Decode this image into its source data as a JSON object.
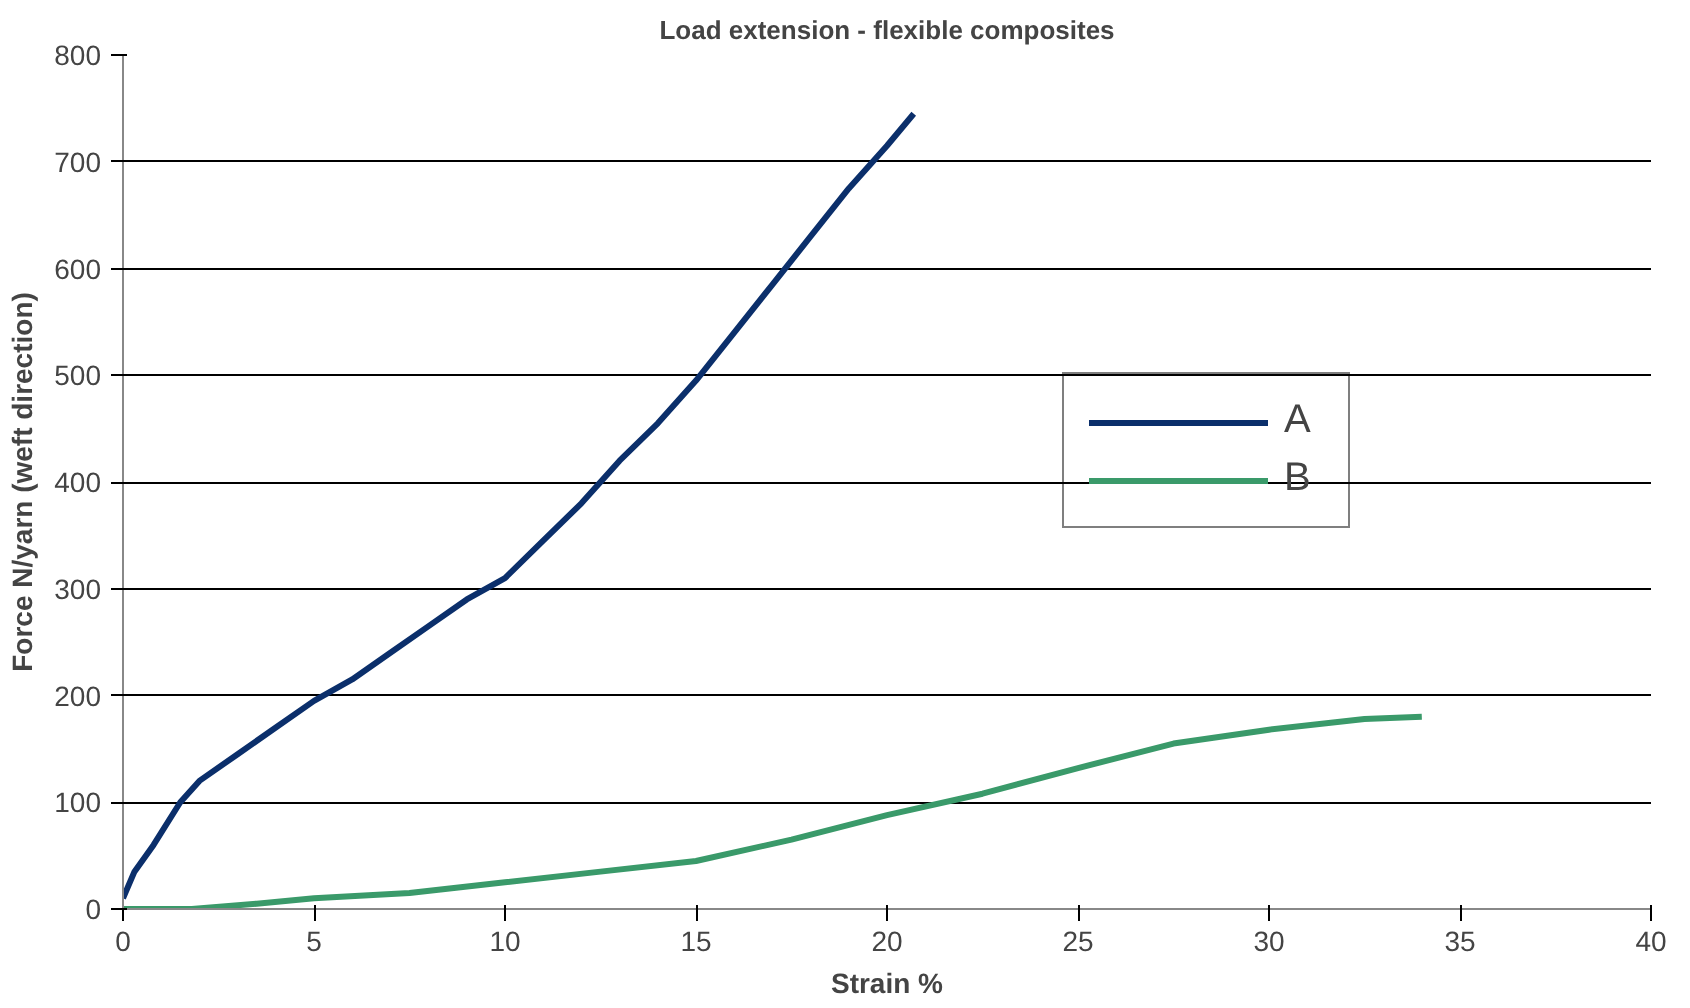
{
  "chart_data": {
    "type": "line",
    "title": "Load extension - flexible composites",
    "xlabel": "Strain %",
    "ylabel": "Force N/yarn (weft direction)",
    "xlim": [
      0,
      40
    ],
    "xticks": [
      0,
      5,
      10,
      15,
      20,
      25,
      30,
      35,
      40
    ],
    "ylim": [
      0,
      800
    ],
    "yticks": [
      0,
      100,
      200,
      300,
      400,
      500,
      600,
      700,
      800
    ],
    "grid": "y",
    "legend": "right",
    "marker": "none",
    "line_style": "solid",
    "series": [
      {
        "name": "A",
        "color": "#0b2f6b",
        "x": [
          0,
          0.3,
          0.8,
          1.5,
          2,
          3,
          4,
          5,
          6,
          7,
          8,
          9,
          10,
          11,
          12,
          13,
          14,
          15,
          16,
          17,
          18,
          19,
          20,
          20.7
        ],
        "values": [
          10,
          35,
          60,
          100,
          120,
          145,
          170,
          195,
          215,
          240,
          265,
          290,
          310,
          345,
          380,
          420,
          455,
          495,
          540,
          585,
          630,
          675,
          715,
          745
        ]
      },
      {
        "name": "B",
        "color": "#3a9a6a",
        "x": [
          0,
          1.8,
          3.5,
          5,
          7.5,
          10,
          12.5,
          15,
          17.5,
          20,
          22.5,
          25,
          27.5,
          30,
          32.5,
          34
        ],
        "values": [
          0,
          0,
          5,
          10,
          15,
          25,
          35,
          45,
          65,
          88,
          108,
          132,
          155,
          168,
          178,
          180
        ]
      }
    ]
  }
}
